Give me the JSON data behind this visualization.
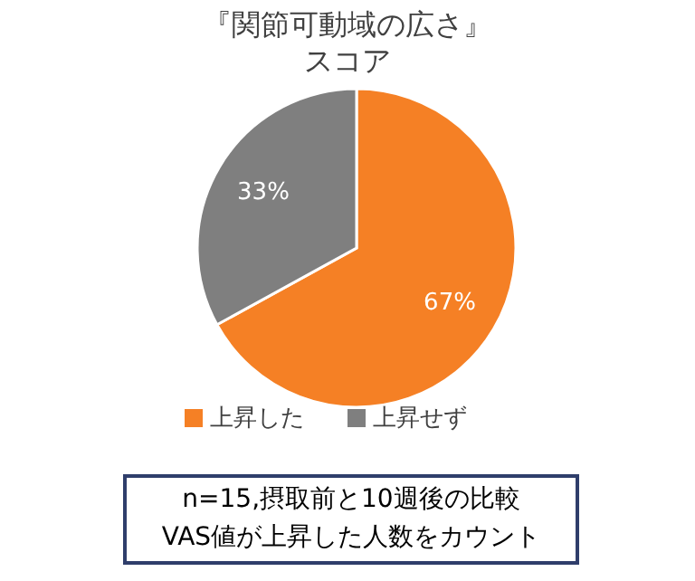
{
  "chart_data": {
    "type": "pie",
    "title": "『関節可動域の広さ』",
    "subtitle": "スコア",
    "categories": [
      "上昇した",
      "上昇せず"
    ],
    "values": [
      67,
      33
    ],
    "colors": [
      "#f58025",
      "#7f7f7f"
    ],
    "value_labels": [
      "67%",
      "33%"
    ],
    "legend": "bottom",
    "annotations": [
      "n=15,摂取前と10週後の比較",
      "VAS値が上昇した人数をカウント"
    ]
  }
}
